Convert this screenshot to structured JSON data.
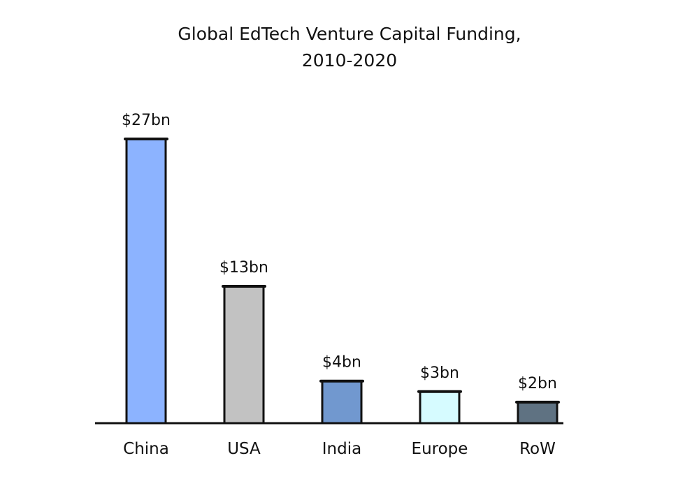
{
  "chart_data": {
    "type": "bar",
    "title": "Global EdTech Venture Capital Funding,",
    "subtitle": "2010-2020",
    "categories": [
      "China",
      "USA",
      "India",
      "Europe",
      "RoW"
    ],
    "values": [
      27,
      13,
      4,
      3,
      2
    ],
    "data_labels": [
      "$27bn",
      "$13bn",
      "$4bn",
      "$3bn",
      "$2bn"
    ],
    "colors": [
      "#8cb3ff",
      "#c2c2c2",
      "#7198cf",
      "#d6fbff",
      "#5f7282"
    ],
    "xlabel": "",
    "ylabel": "",
    "ylim": [
      0,
      27
    ],
    "grid": false,
    "legend": "none"
  }
}
